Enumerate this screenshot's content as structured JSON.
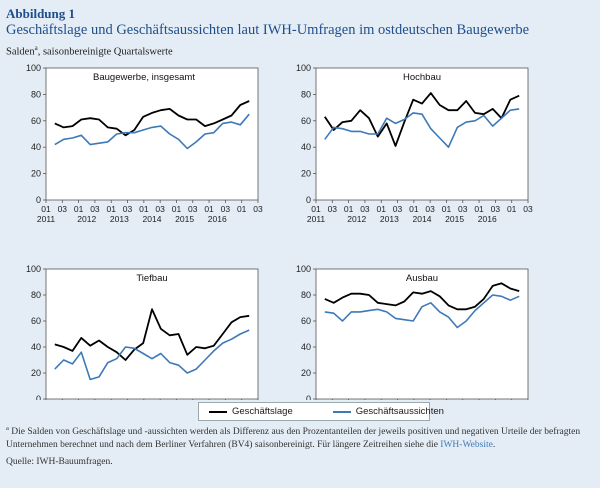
{
  "header": {
    "figure_label": "Abbildung 1",
    "title": "Geschäftslage und Geschäftsaussichten laut IWH-Umfragen im ostdeutschen Baugewerbe",
    "subtitle": "Salden",
    "subtitle_marker": "a",
    "subtitle_rest": ", saisonbereinigte Quartalswerte"
  },
  "legend": {
    "items": [
      {
        "label": "Geschäftslage",
        "color": "#000000"
      },
      {
        "label": "Geschäftsaussichten",
        "color": "#3d79b8"
      }
    ]
  },
  "footnote": {
    "marker": "a",
    "text": "Die Salden von Geschäftslage und -aussichten werden als Differenz aus den Prozentanteilen der jeweils positiven und negativen Urteile der befragten Unternehmen berechnet und nach dem Berliner Verfahren (BV4) saisonbereinigt. Für längere Zeitreihen siehe die ",
    "link_text": "IWH-Website",
    "end": ".",
    "source": "Quelle: IWH-Bauumfragen."
  },
  "chart_data": [
    {
      "type": "line",
      "title": "Baugewerbe, insgesamt",
      "ylim": [
        0,
        100
      ],
      "yticks": [
        0,
        20,
        40,
        60,
        80,
        100
      ],
      "x_tick_quarters": [
        "01",
        "03",
        "01",
        "03",
        "01",
        "03",
        "01",
        "03",
        "01",
        "03",
        "01",
        "03",
        "01",
        "03"
      ],
      "x_tick_years": [
        "2011",
        "2012",
        "2013",
        "2014",
        "2015",
        "2016"
      ],
      "grid": false,
      "series": [
        {
          "name": "Geschäftslage",
          "color": "#000000",
          "values": [
            58,
            55,
            56,
            61,
            62,
            61,
            55,
            54,
            49,
            53,
            63,
            66,
            68,
            69,
            64,
            61,
            61,
            56,
            58,
            61,
            64,
            72,
            75
          ]
        },
        {
          "name": "Geschäftsaussichten",
          "color": "#3d79b8",
          "values": [
            42,
            46,
            47,
            49,
            42,
            43,
            44,
            50,
            51,
            51,
            53,
            55,
            56,
            50,
            46,
            39,
            44,
            50,
            51,
            58,
            59,
            57,
            65
          ]
        }
      ]
    },
    {
      "type": "line",
      "title": "Hochbau",
      "ylim": [
        0,
        100
      ],
      "yticks": [
        0,
        20,
        40,
        60,
        80,
        100
      ],
      "x_tick_quarters": [
        "01",
        "03",
        "01",
        "03",
        "01",
        "03",
        "01",
        "03",
        "01",
        "03",
        "01",
        "03",
        "01",
        "03"
      ],
      "x_tick_years": [
        "2011",
        "2012",
        "2013",
        "2014",
        "2015",
        "2016"
      ],
      "grid": false,
      "series": [
        {
          "name": "Geschäftslage",
          "color": "#000000",
          "values": [
            63,
            53,
            59,
            60,
            68,
            62,
            48,
            58,
            41,
            59,
            76,
            73,
            81,
            72,
            68,
            68,
            75,
            66,
            65,
            69,
            62,
            76,
            79
          ]
        },
        {
          "name": "Geschäftsaussichten",
          "color": "#3d79b8",
          "values": [
            46,
            55,
            54,
            52,
            52,
            50,
            50,
            62,
            58,
            61,
            66,
            65,
            54,
            47,
            40,
            55,
            59,
            60,
            64,
            56,
            62,
            68,
            69
          ]
        }
      ]
    },
    {
      "type": "line",
      "title": "Tiefbau",
      "ylim": [
        0,
        100
      ],
      "yticks": [
        0,
        20,
        40,
        60,
        80,
        100
      ],
      "x_tick_quarters": [
        "01",
        "03",
        "01",
        "03",
        "01",
        "03",
        "01",
        "03",
        "01",
        "03",
        "01",
        "03",
        "01",
        "03"
      ],
      "x_tick_years": [
        "2011",
        "2012",
        "2013",
        "2014",
        "2015",
        "2016"
      ],
      "grid": false,
      "series": [
        {
          "name": "Geschäftslage",
          "color": "#000000",
          "values": [
            42,
            40,
            37,
            47,
            41,
            45,
            40,
            36,
            30,
            38,
            43,
            69,
            54,
            49,
            50,
            34,
            40,
            39,
            41,
            50,
            59,
            63,
            64
          ]
        },
        {
          "name": "Geschäftsaussichten",
          "color": "#3d79b8",
          "values": [
            23,
            30,
            27,
            36,
            15,
            17,
            28,
            31,
            40,
            39,
            35,
            31,
            35,
            28,
            26,
            20,
            23,
            30,
            37,
            43,
            46,
            50,
            53
          ]
        }
      ]
    },
    {
      "type": "line",
      "title": "Ausbau",
      "ylim": [
        0,
        100
      ],
      "yticks": [
        0,
        20,
        40,
        60,
        80,
        100
      ],
      "x_tick_quarters": [
        "01",
        "03",
        "01",
        "03",
        "01",
        "03",
        "01",
        "03",
        "01",
        "03",
        "01",
        "03",
        "01",
        "03"
      ],
      "x_tick_years": [
        "2011",
        "2012",
        "2013",
        "2014",
        "2015",
        "2016"
      ],
      "grid": false,
      "series": [
        {
          "name": "Geschäftslage",
          "color": "#000000",
          "values": [
            77,
            74,
            78,
            81,
            81,
            80,
            74,
            73,
            72,
            75,
            82,
            81,
            83,
            79,
            72,
            69,
            69,
            71,
            77,
            87,
            89,
            85,
            83
          ]
        },
        {
          "name": "Geschäftsaussichten",
          "color": "#3d79b8",
          "values": [
            67,
            66,
            60,
            67,
            67,
            68,
            69,
            67,
            62,
            61,
            60,
            71,
            74,
            67,
            63,
            55,
            60,
            68,
            74,
            80,
            79,
            76,
            79
          ]
        }
      ]
    }
  ]
}
